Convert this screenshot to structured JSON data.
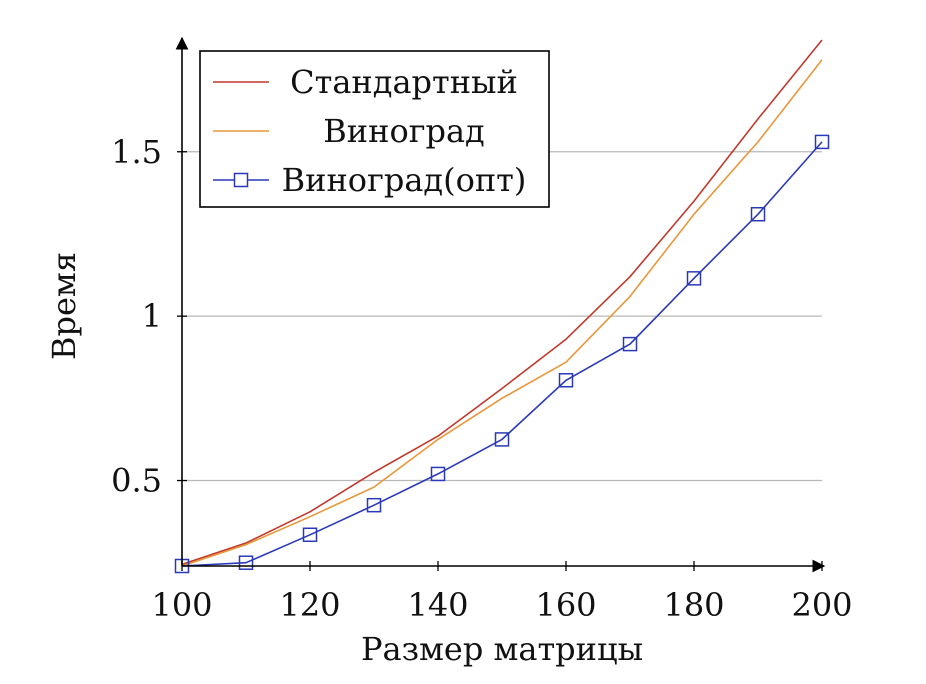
{
  "chart_data": {
    "type": "line",
    "title": "",
    "xlabel": "Размер матрицы",
    "ylabel": "Время",
    "xlim": [
      100,
      200
    ],
    "ylim": [
      0.24,
      1.84
    ],
    "x_ticks": [
      100,
      120,
      140,
      160,
      180,
      200
    ],
    "y_ticks": [
      0.5,
      1,
      1.5
    ],
    "y_tick_labels": [
      "0.5",
      "1",
      "1.5"
    ],
    "grid": "horizontal",
    "legend_position": "top-left",
    "x": [
      100,
      110,
      120,
      130,
      140,
      150,
      160,
      170,
      180,
      190,
      200
    ],
    "series": [
      {
        "name": "Стандартный",
        "color": "#c0392b",
        "marker": "none",
        "values": [
          0.245,
          0.31,
          0.405,
          0.525,
          0.635,
          0.78,
          0.93,
          1.12,
          1.35,
          1.6,
          1.84
        ]
      },
      {
        "name": "Виноград",
        "color": "#e8973a",
        "marker": "none",
        "values": [
          0.24,
          0.305,
          0.39,
          0.48,
          0.625,
          0.75,
          0.86,
          1.06,
          1.31,
          1.53,
          1.78
        ]
      },
      {
        "name": "Виноград(опт)",
        "color": "#2a39b8",
        "marker": "square",
        "values": [
          0.24,
          0.25,
          0.335,
          0.425,
          0.52,
          0.625,
          0.805,
          0.915,
          1.115,
          1.31,
          1.53
        ]
      }
    ]
  }
}
